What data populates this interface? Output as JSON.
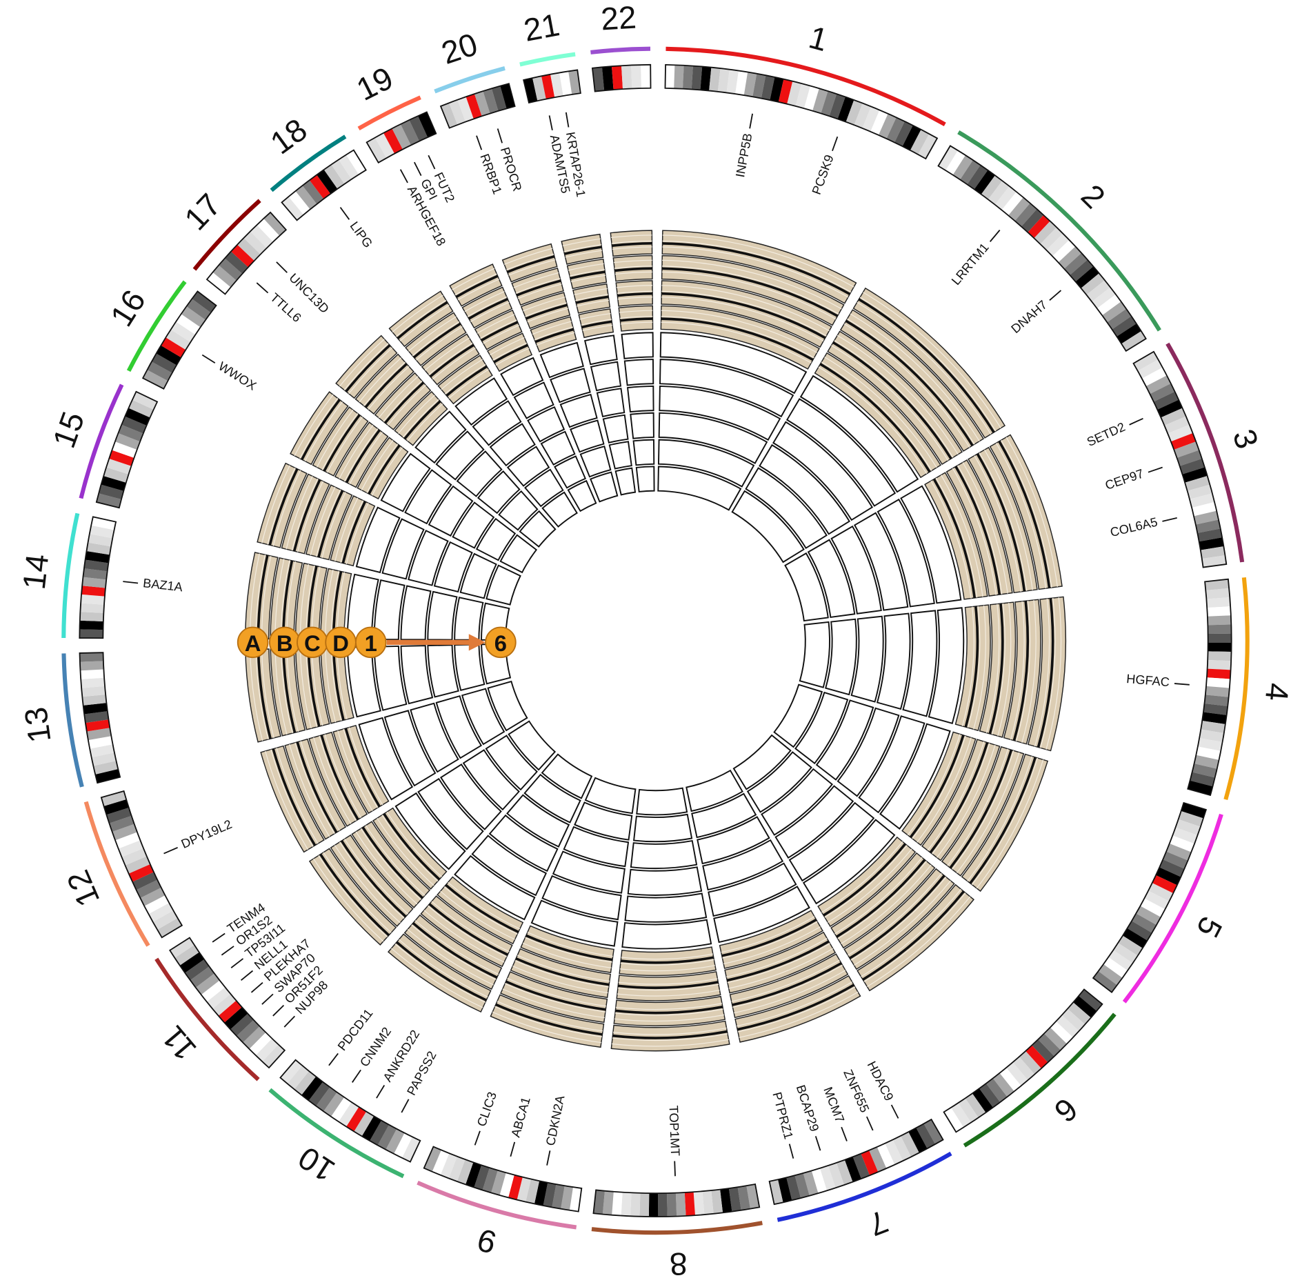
{
  "chromosomes": [
    {
      "label": "1",
      "color": "#e41a1c",
      "genes": [
        "INPP5B",
        "PCSK9"
      ]
    },
    {
      "label": "2",
      "color": "#3a9a5b",
      "genes": [
        "LRRTM1",
        "DNAH7"
      ]
    },
    {
      "label": "3",
      "color": "#8b2a5e",
      "genes": [
        "SETD2",
        "CEP97",
        "COL6A5"
      ]
    },
    {
      "label": "4",
      "color": "#f2a20e",
      "genes": [
        "HGFAC"
      ]
    },
    {
      "label": "5",
      "color": "#ee2ce0",
      "genes": []
    },
    {
      "label": "6",
      "color": "#1a6e1a",
      "genes": []
    },
    {
      "label": "7",
      "color": "#1f2ed6",
      "genes": [
        "HDAC9",
        "ZNF655",
        "MCM7",
        "BCAP29",
        "PTPRZ1"
      ]
    },
    {
      "label": "8",
      "color": "#a0522d",
      "genes": [
        "TOP1MT"
      ]
    },
    {
      "label": "9",
      "color": "#d97aa8",
      "genes": [
        "CDKN2A",
        "ABCA1",
        "CLIC3"
      ]
    },
    {
      "label": "10",
      "color": "#3cb371",
      "genes": [
        "PAPSS2",
        "ANKRD22",
        "CNNM2",
        "PDCD11"
      ]
    },
    {
      "label": "11",
      "color": "#a52a2a",
      "genes": [
        "NUP98",
        "OR51F2",
        "SWAP70",
        "PLEKHA7",
        "NELL1",
        "TP53I11",
        "OR1S2",
        "TENM4"
      ]
    },
    {
      "label": "12",
      "color": "#f4895f",
      "genes": [
        "DPY19L2"
      ]
    },
    {
      "label": "13",
      "color": "#4682b4",
      "genes": []
    },
    {
      "label": "14",
      "color": "#40e0d0",
      "genes": [
        "BAZ1A"
      ]
    },
    {
      "label": "15",
      "color": "#9932cc",
      "genes": []
    },
    {
      "label": "16",
      "color": "#32cd32",
      "genes": [
        "WWOX"
      ]
    },
    {
      "label": "17",
      "color": "#8b0000",
      "genes": [
        "TTLL6",
        "UNC13D"
      ]
    },
    {
      "label": "18",
      "color": "#008080",
      "genes": [
        "LIPG"
      ]
    },
    {
      "label": "19",
      "color": "#ff6347",
      "genes": [
        "ARHGEF18",
        "GPI",
        "FUT2"
      ]
    },
    {
      "label": "20",
      "color": "#87ceeb",
      "genes": [
        "RRBP1",
        "PROCR"
      ]
    },
    {
      "label": "21",
      "color": "#7fffd4",
      "genes": [
        "ADAMTS5",
        "KRTAP26-1"
      ]
    },
    {
      "label": "22",
      "color": "#9b4fd0",
      "genes": []
    }
  ],
  "tracks": {
    "labels": [
      "A",
      "B",
      "C",
      "D",
      "1",
      "6"
    ]
  }
}
